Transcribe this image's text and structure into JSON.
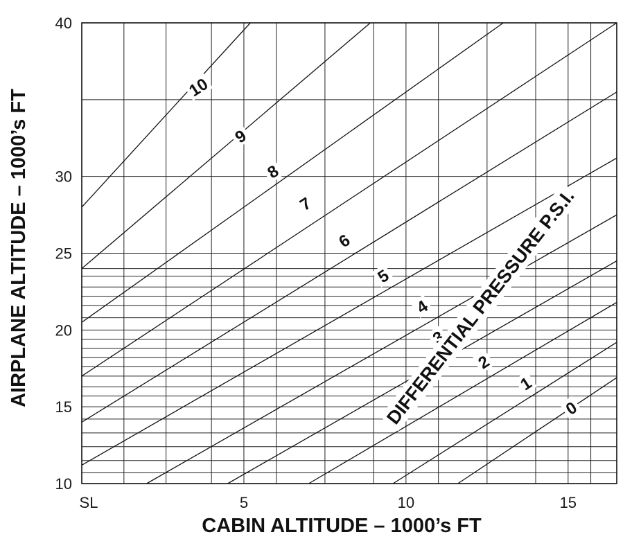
{
  "chart_data": {
    "type": "line",
    "xlabel": "CABIN ALTITUDE – 1000’s FT",
    "ylabel": "AIRPLANE ALTITUDE – 1000’s FT",
    "annotation": "DIFFERENTIAL PRESSURE  P.S.I.",
    "x_ticks": [
      {
        "value": 0,
        "label": "SL"
      },
      {
        "value": 5,
        "label": "5"
      },
      {
        "value": 10,
        "label": "10"
      },
      {
        "value": 15,
        "label": "15"
      }
    ],
    "y_ticks": [
      {
        "value": 10,
        "label": "10"
      },
      {
        "value": 15,
        "label": "15"
      },
      {
        "value": 20,
        "label": "20"
      },
      {
        "value": 25,
        "label": "25"
      },
      {
        "value": 30,
        "label": "30"
      },
      {
        "value": 40,
        "label": "40"
      }
    ],
    "xlim": [
      0,
      16.5
    ],
    "ylim": [
      10,
      40
    ],
    "grid": true,
    "series": [
      {
        "name": "0",
        "x": [
          11.6,
          16.5
        ],
        "y": [
          10.0,
          16.9
        ]
      },
      {
        "name": "1",
        "x": [
          9.6,
          16.5
        ],
        "y": [
          10.0,
          19.2
        ]
      },
      {
        "name": "2",
        "x": [
          7.0,
          16.5
        ],
        "y": [
          10.0,
          21.8
        ]
      },
      {
        "name": "3",
        "x": [
          4.5,
          16.5
        ],
        "y": [
          10.0,
          24.5
        ]
      },
      {
        "name": "4",
        "x": [
          2.0,
          16.5
        ],
        "y": [
          10.0,
          27.5
        ]
      },
      {
        "name": "5",
        "x": [
          0.0,
          16.5
        ],
        "y": [
          11.2,
          31.2
        ]
      },
      {
        "name": "6",
        "x": [
          0.0,
          16.5
        ],
        "y": [
          14.0,
          35.5
        ]
      },
      {
        "name": "7",
        "x": [
          0.0,
          16.5
        ],
        "y": [
          17.0,
          40.0
        ]
      },
      {
        "name": "8",
        "x": [
          0.0,
          13.0
        ],
        "y": [
          20.5,
          40.0
        ]
      },
      {
        "name": "9",
        "x": [
          0.0,
          8.9
        ],
        "y": [
          24.0,
          40.0
        ]
      },
      {
        "name": "10",
        "x": [
          0.0,
          5.2
        ],
        "y": [
          28.0,
          40.0
        ]
      }
    ],
    "curve_labels": [
      {
        "text": "0",
        "x": 15.1,
        "y": 14.9
      },
      {
        "text": "1",
        "x": 13.7,
        "y": 16.5
      },
      {
        "text": "2",
        "x": 12.4,
        "y": 17.9
      },
      {
        "text": "3",
        "x": 11.0,
        "y": 19.5
      },
      {
        "text": "4",
        "x": 10.5,
        "y": 21.5
      },
      {
        "text": "5",
        "x": 9.3,
        "y": 23.5
      },
      {
        "text": "6",
        "x": 8.1,
        "y": 25.8
      },
      {
        "text": "7",
        "x": 6.9,
        "y": 28.2
      },
      {
        "text": "8",
        "x": 5.9,
        "y": 30.3
      },
      {
        "text": "9",
        "x": 4.9,
        "y": 32.6
      },
      {
        "text": "10",
        "x": 3.6,
        "y": 35.8
      }
    ],
    "annotation_position": {
      "x": 12.3,
      "y": 21.5
    }
  }
}
